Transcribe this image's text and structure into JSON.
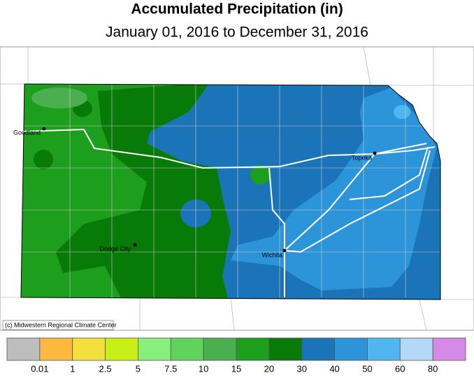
{
  "header": {
    "title": "Accumulated Precipitation (in)",
    "subtitle": "January 01, 2016 to December 31, 2016"
  },
  "cities": [
    {
      "name": "Goodland"
    },
    {
      "name": "Dodge City"
    },
    {
      "name": "Wichita"
    },
    {
      "name": "Topeka"
    }
  ],
  "credit": "(c) Midwestern Regional Climate Center",
  "legend": {
    "colors": [
      "#bdbdbd",
      "#fdb93f",
      "#f3e03e",
      "#c8ef16",
      "#88ee7c",
      "#5fd35c",
      "#4caf4f",
      "#1d9e1d",
      "#077a07",
      "#1b73b8",
      "#2c95da",
      "#51b5ef",
      "#b5d8f7",
      "#d58be6"
    ],
    "labels": [
      0.01,
      1,
      2.5,
      5,
      7.5,
      10,
      15,
      20,
      30,
      40,
      50,
      60,
      80
    ]
  }
}
